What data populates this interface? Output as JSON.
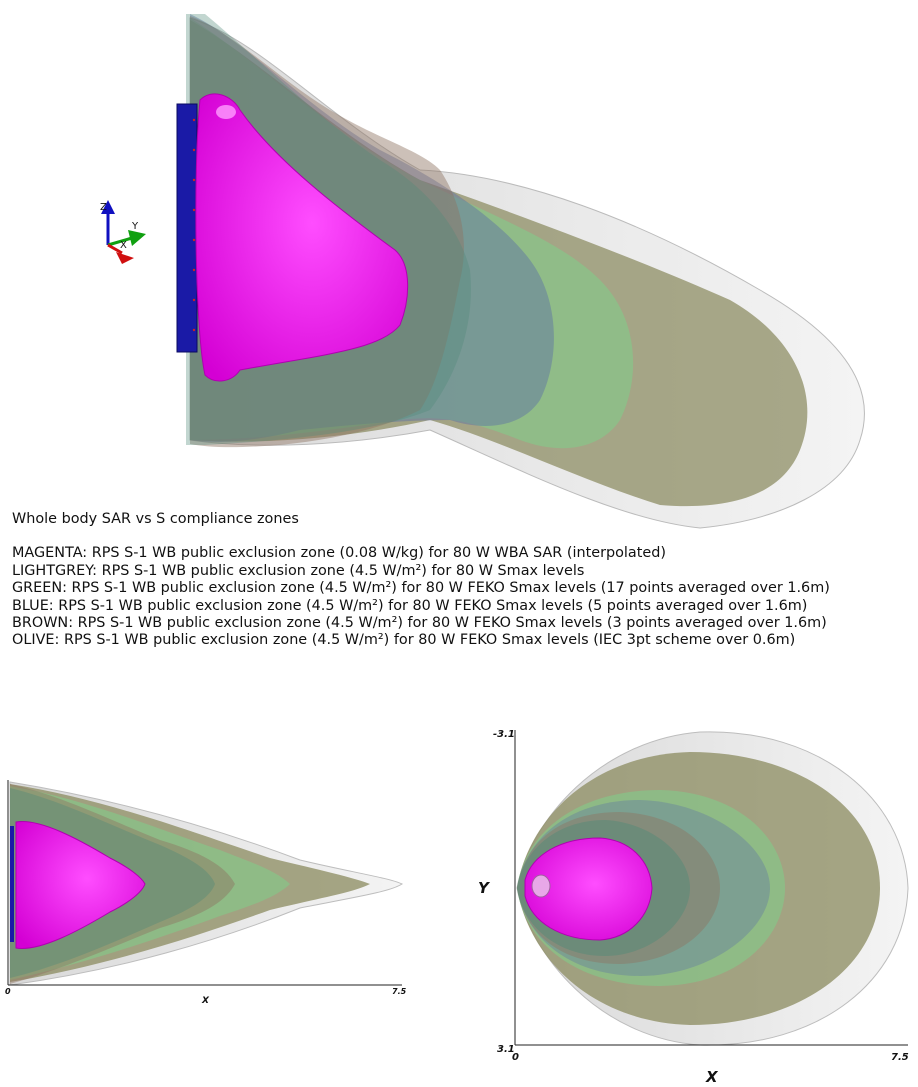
{
  "caption": {
    "title": "Whole body SAR vs S compliance zones",
    "legend": [
      {
        "key": "magenta",
        "color": "#ff00ff",
        "text": "MAGENTA: RPS S-1 WB public exclusion zone (0.08 W/kg) for 80 W WBA SAR (interpolated)"
      },
      {
        "key": "lightgrey",
        "color": "#e8e8e8",
        "text": "LIGHTGREY: RPS S-1 WB public exclusion zone (4.5 W/m²) for 80 W Smax levels"
      },
      {
        "key": "green",
        "color": "#7fd08a",
        "text": "GREEN: RPS S-1 WB public exclusion zone (4.5 W/m²) for 80 W FEKO Smax levels (17 points averaged over 1.6m)"
      },
      {
        "key": "blue",
        "color": "#5c6fa6",
        "text": "BLUE: RPS S-1 WB public exclusion zone (4.5 W/m²) for 80 W FEKO Smax levels (5 points averaged over 1.6m)"
      },
      {
        "key": "brown",
        "color": "#8f7462",
        "text": "BROWN: RPS S-1 WB public exclusion zone (4.5 W/m²) for 80 W FEKO Smax levels (3 points averaged over 1.6m)"
      },
      {
        "key": "olive",
        "color": "#8e8e64",
        "text": "OLIVE: RPS S-1 WB public exclusion zone (4.5 W/m²) for 80 W FEKO Smax levels (IEC 3pt scheme over 0.6m)"
      }
    ]
  },
  "orientation_axes": {
    "z_label": "Z",
    "y_label": "Y",
    "x_label": "X"
  },
  "side_view": {
    "x_min_label": "0",
    "x_max_label": "7.5",
    "x_axis_label": "X"
  },
  "top_view": {
    "x_min_label": "0",
    "x_max_label": "7.5",
    "x_axis_label": "X",
    "y_top_label": "-3.1",
    "y_bottom_label": "3.1",
    "y_axis_label": "Y"
  }
}
